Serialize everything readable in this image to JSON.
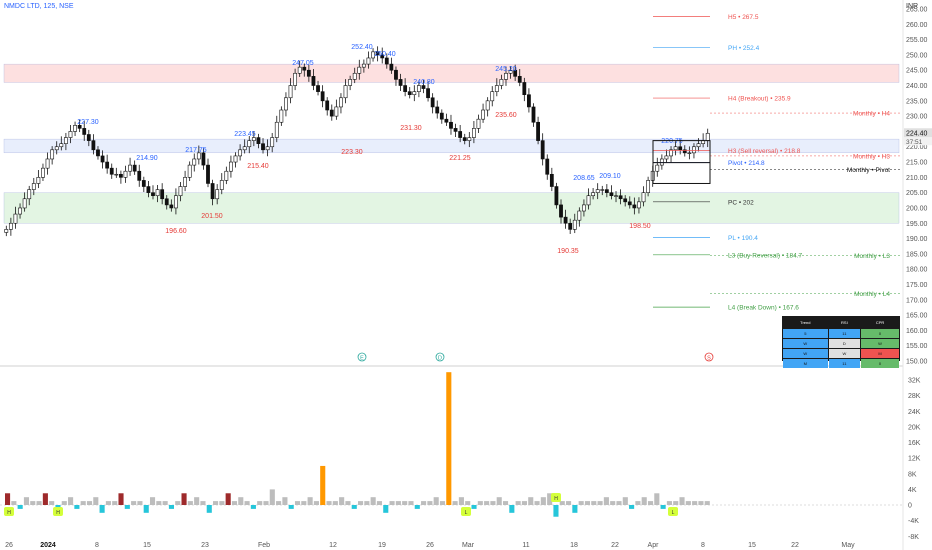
{
  "header": {
    "symbol": "NMDC LTD, 125, NSE",
    "currency": "INR"
  },
  "colors": {
    "up": "#26a69a",
    "down": "#111111",
    "candle_up_fill": "#ffffff",
    "blue": "#2962ff",
    "red": "#e53935",
    "green": "#43a047",
    "orange": "#ff9800",
    "cyan": "#26c6da",
    "gray": "#bdbdbd"
  },
  "chart_data": {
    "type": "candlestick",
    "price_axis": {
      "min": 150,
      "max": 265,
      "ticks": [
        "265.00",
        "260.00",
        "255.00",
        "250.00",
        "245.00",
        "240.00",
        "235.00",
        "230.00",
        "225.00",
        "220.00",
        "215.00",
        "210.00",
        "205.00",
        "200.00",
        "195.00",
        "190.00",
        "185.00",
        "180.00",
        "175.00",
        "170.00",
        "165.00",
        "160.00",
        "155.00",
        "150.00"
      ]
    },
    "last_price": {
      "close": "224.40",
      "timer": "37:51"
    },
    "volume_axis": {
      "ticks": [
        "32K",
        "28K",
        "24K",
        "20K",
        "16K",
        "12K",
        "8K",
        "4K",
        "0",
        "-4K",
        "-8K"
      ]
    },
    "time_axis": [
      "26",
      "2024",
      "8",
      "15",
      "23",
      "Feb",
      "12",
      "19",
      "26",
      "Mar",
      "11",
      "18",
      "22",
      "Apr",
      "8",
      "15",
      "22",
      "May"
    ],
    "close_path": [
      193,
      195,
      198,
      200,
      203,
      206,
      208,
      210,
      213,
      216,
      219,
      220,
      221,
      223,
      225,
      227,
      226,
      224,
      222,
      219,
      217,
      215,
      213,
      211,
      211,
      210,
      212,
      214,
      212,
      209,
      207,
      205,
      204,
      206,
      203,
      201,
      200,
      204,
      207,
      210,
      214,
      216,
      218,
      214,
      208,
      203,
      206,
      209,
      212,
      215,
      217,
      219,
      220,
      222,
      223,
      221,
      219,
      220,
      223,
      228,
      232,
      236,
      240,
      244,
      246,
      245,
      243,
      240,
      238,
      235,
      232,
      230,
      233,
      236,
      240,
      242,
      244,
      246,
      247,
      249,
      251,
      250,
      249,
      247,
      245,
      242,
      240,
      238,
      237,
      238,
      240,
      239,
      236,
      233,
      231,
      229,
      228,
      226,
      225,
      223,
      222,
      223,
      226,
      229,
      232,
      235,
      238,
      240,
      242,
      244,
      245,
      243,
      241,
      237,
      233,
      228,
      222,
      216,
      211,
      207,
      201,
      197,
      195,
      193,
      196,
      199,
      201,
      204,
      205,
      206,
      206,
      205,
      204,
      204,
      203,
      202,
      201,
      200,
      202,
      205,
      209,
      212,
      214,
      216,
      217,
      219,
      220,
      219,
      218,
      218,
      220,
      221,
      222,
      224.4
    ],
    "volume_path": [
      3,
      1,
      -1,
      2,
      1,
      1,
      3,
      1,
      -2,
      1,
      2,
      -1,
      1,
      1,
      2,
      -2,
      1,
      1,
      3,
      -1,
      1,
      1,
      -2,
      2,
      1,
      1,
      -1,
      1,
      3,
      1,
      2,
      1,
      -2,
      1,
      1,
      3,
      1,
      2,
      1,
      -1,
      1,
      1,
      4,
      1,
      2,
      -1,
      1,
      1,
      2,
      1,
      10,
      1,
      1,
      2,
      1,
      -1,
      1,
      1,
      2,
      1,
      -2,
      1,
      1,
      1,
      1,
      -1,
      1,
      1,
      2,
      1,
      34,
      1,
      2,
      1,
      -1,
      1,
      1,
      1,
      2,
      1,
      -2,
      1,
      1,
      2,
      1,
      2,
      3,
      -3,
      1,
      1,
      -2,
      1,
      1,
      1,
      1,
      2,
      1,
      1,
      2,
      -1,
      1,
      2,
      1,
      3,
      -1,
      1,
      1,
      2,
      1,
      1,
      1,
      1
    ],
    "swing_labels": [
      {
        "text": "227.30",
        "type": "high"
      },
      {
        "text": "214.90",
        "type": "high"
      },
      {
        "text": "217.75",
        "type": "high"
      },
      {
        "text": "223.45",
        "type": "high"
      },
      {
        "text": "247.05",
        "type": "high"
      },
      {
        "text": "252.40",
        "type": "high"
      },
      {
        "text": "250.40",
        "type": "high"
      },
      {
        "text": "240.80",
        "type": "high"
      },
      {
        "text": "245.20",
        "type": "high"
      },
      {
        "text": "208.65",
        "type": "high"
      },
      {
        "text": "209.10",
        "type": "high"
      },
      {
        "text": "220.75",
        "type": "high"
      },
      {
        "text": "196.60",
        "type": "low"
      },
      {
        "text": "201.50",
        "type": "low"
      },
      {
        "text": "215.40",
        "type": "low"
      },
      {
        "text": "223.30",
        "type": "low"
      },
      {
        "text": "231.30",
        "type": "low"
      },
      {
        "text": "221.25",
        "type": "low"
      },
      {
        "text": "235.60",
        "type": "low"
      },
      {
        "text": "190.35",
        "type": "low"
      },
      {
        "text": "198.50",
        "type": "low"
      }
    ],
    "levels": [
      {
        "label": "H5 • 267.5",
        "price": 267.5,
        "color": "#ef5350"
      },
      {
        "label": "PH • 252.4",
        "price": 252.4,
        "color": "#42a5f5"
      },
      {
        "label": "H4 (Breakout) • 235.9",
        "price": 235.9,
        "color": "#ef5350"
      },
      {
        "label": "H3 (Sell reversal) • 218.8",
        "price": 218.8,
        "color": "#ef5350"
      },
      {
        "label": "Pivot • 214.8",
        "price": 214.8,
        "color": "#2962ff"
      },
      {
        "label": "PC • 202",
        "price": 202,
        "color": "#333333"
      },
      {
        "label": "PL • 190.4",
        "price": 190.4,
        "color": "#42a5f5"
      },
      {
        "label": "L3 (Buy Reversal) • 184.7",
        "price": 184.7,
        "color": "#43a047"
      },
      {
        "label": "L4 (Break Down) • 167.6",
        "price": 167.6,
        "color": "#43a047"
      }
    ],
    "monthly_levels": [
      {
        "label": "Monthly • H4",
        "price": 231,
        "color": "#ef5350"
      },
      {
        "label": "Monthly • H3",
        "price": 217,
        "color": "#ef5350"
      },
      {
        "label": "Monthly • Pivot",
        "price": 212.5,
        "color": "#111111"
      },
      {
        "label": "Monthly • L3",
        "price": 184.5,
        "color": "#43a047"
      },
      {
        "label": "Monthly • L4",
        "price": 172,
        "color": "#43a047"
      }
    ],
    "zones": [
      {
        "from": 241,
        "to": 247,
        "color": "#fde0e0"
      },
      {
        "from": 218,
        "to": 222.5,
        "color": "#e8eefc"
      },
      {
        "from": 195,
        "to": 205,
        "color": "#e3f5e3"
      }
    ],
    "event_icons": [
      {
        "glyph": "E"
      },
      {
        "glyph": "D"
      },
      {
        "glyph": "S"
      }
    ],
    "volume_markers": [
      "H",
      "H",
      "L",
      "H",
      "L"
    ]
  },
  "table": {
    "headers": [
      "Trend",
      "RSI",
      "CPR"
    ],
    "rows": [
      [
        {
          "text": "5",
          "bg": "#42a5f5"
        },
        {
          "text": "11",
          "bg": "#42a5f5"
        },
        {
          "text": "0",
          "bg": "#66bb6a"
        }
      ],
      [
        {
          "text": "W",
          "bg": "#42a5f5"
        },
        {
          "text": "D",
          "bg": "#e0e0e0"
        },
        {
          "text": "W",
          "bg": "#66bb6a"
        }
      ],
      [
        {
          "text": "W",
          "bg": "#42a5f5"
        },
        {
          "text": "W",
          "bg": "#e0e0e0"
        },
        {
          "text": "M",
          "bg": "#ef5350"
        }
      ],
      [
        {
          "text": "M",
          "bg": "#42a5f5"
        },
        {
          "text": "11",
          "bg": "#42a5f5"
        },
        {
          "text": "0",
          "bg": "#66bb6a"
        }
      ]
    ]
  }
}
